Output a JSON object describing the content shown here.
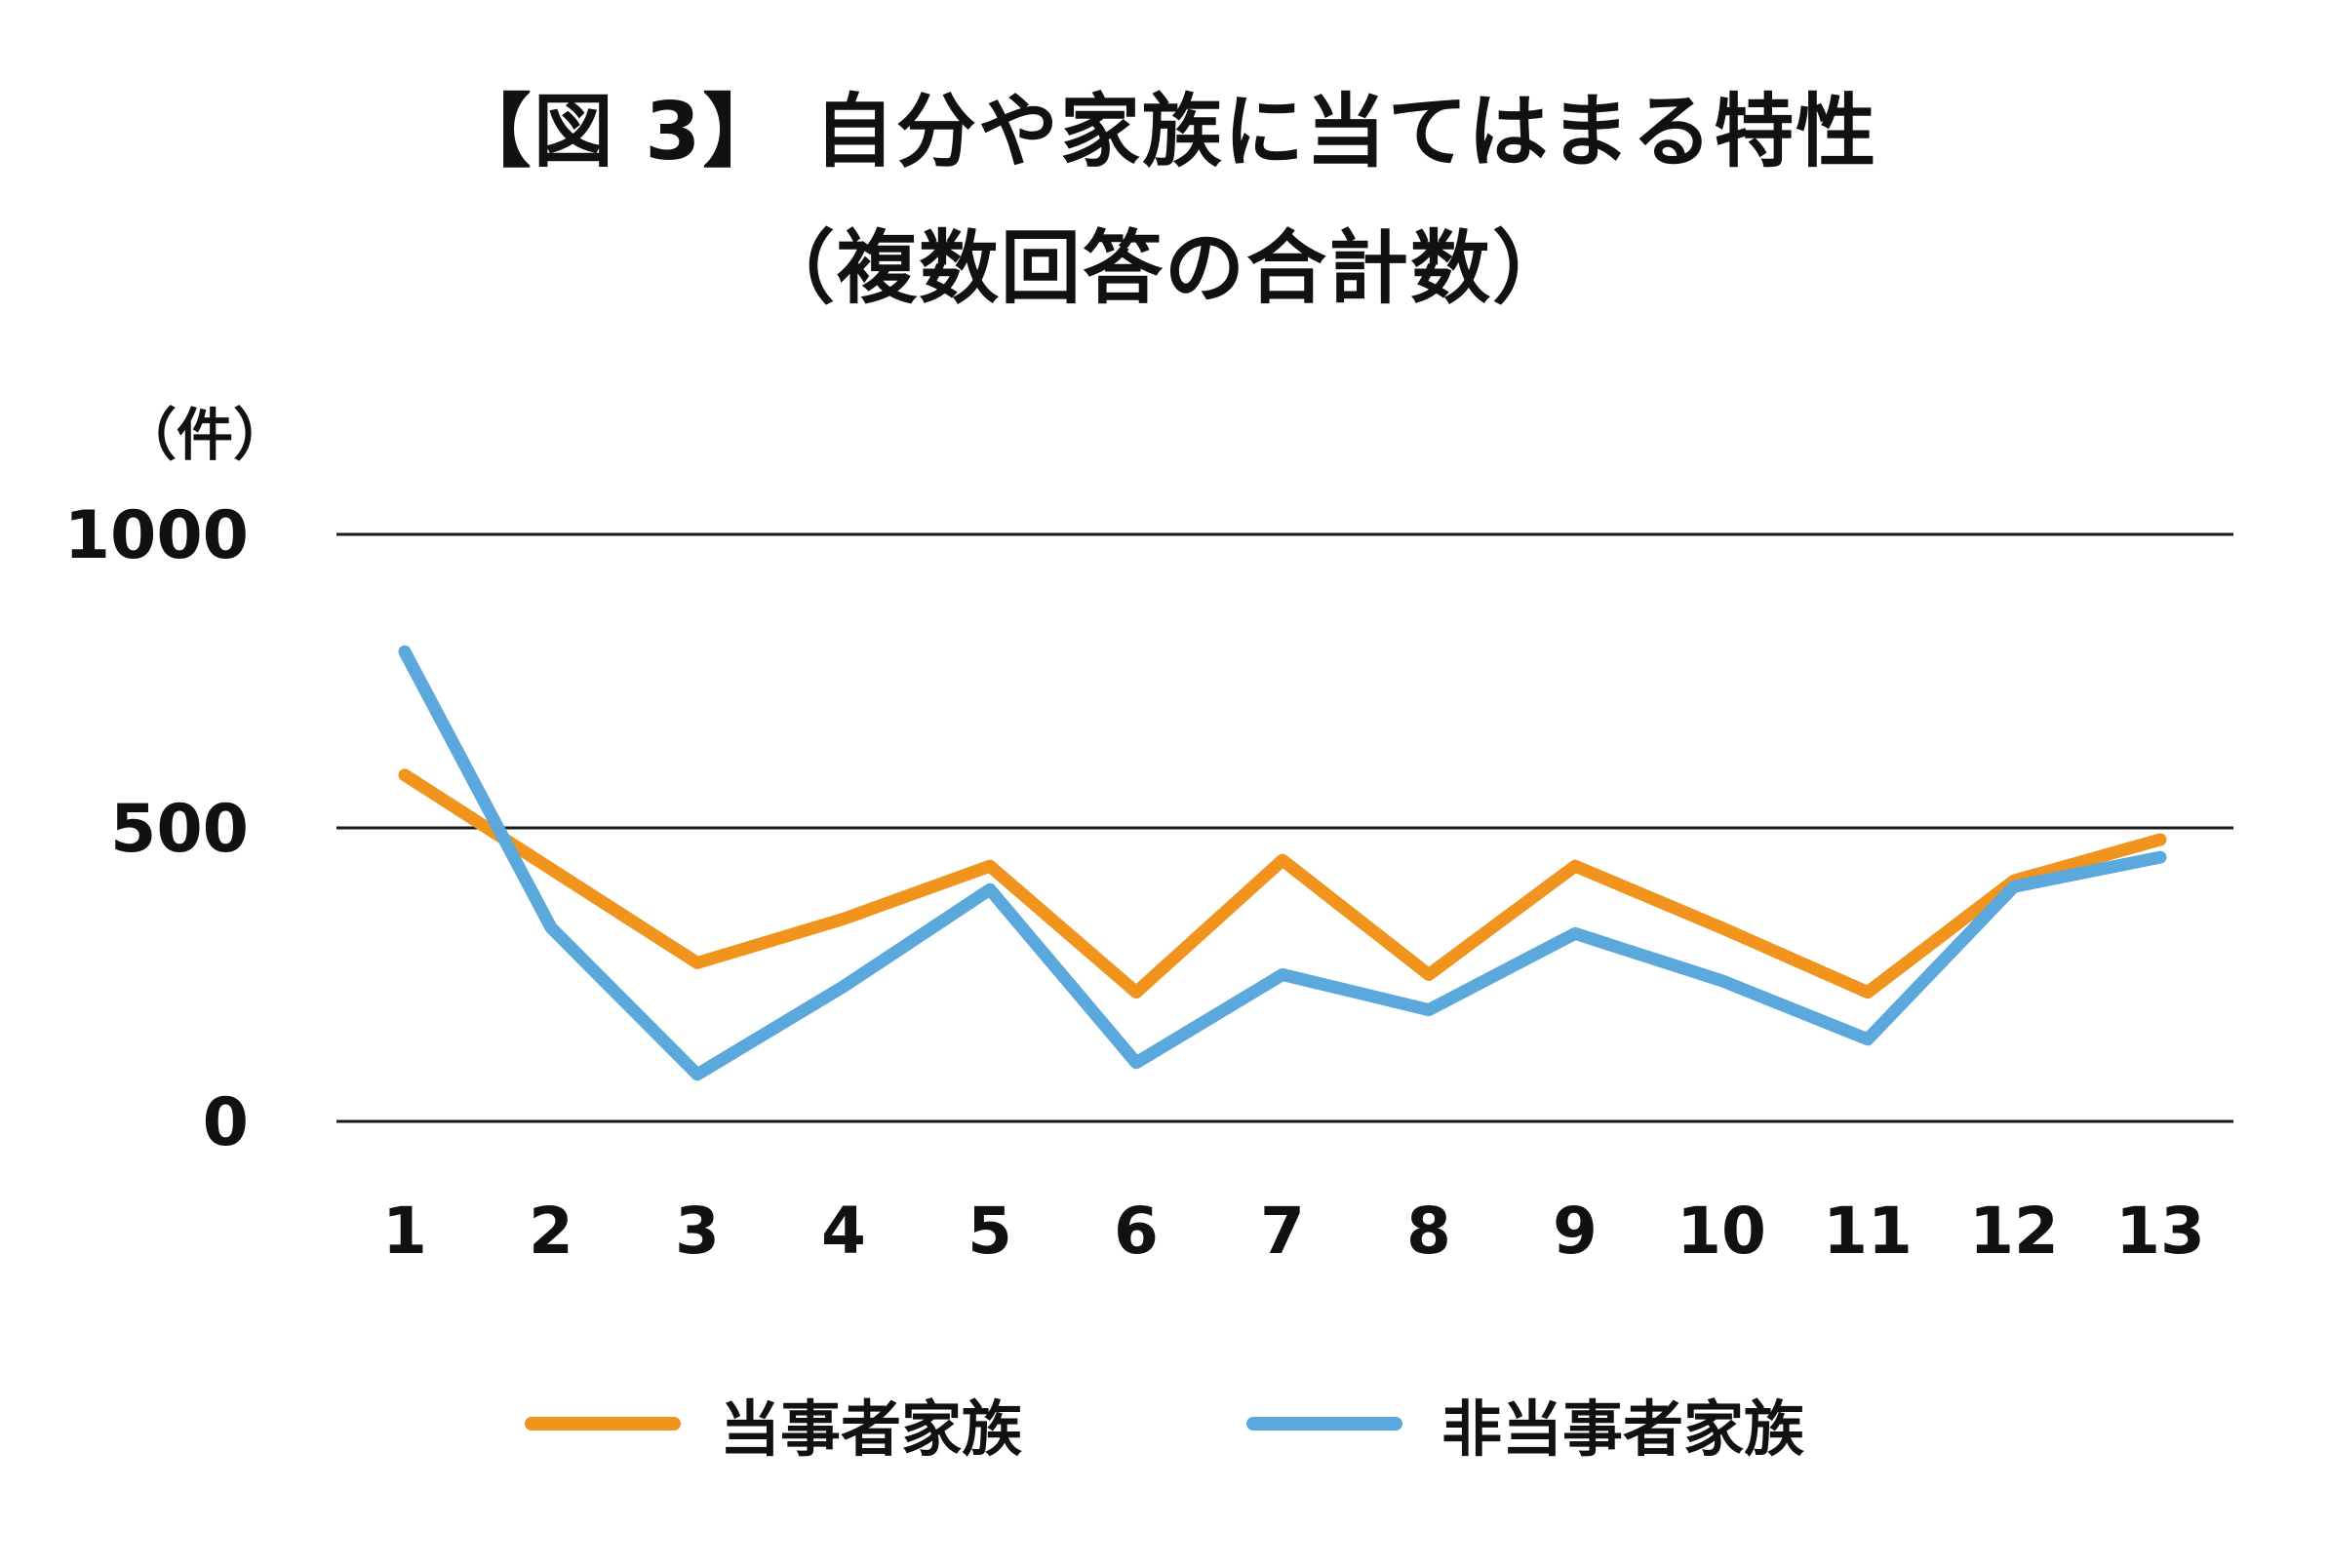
{
  "title": {
    "line1": "【図 3】 自分や家族に当てはまる特性",
    "line2": "（複数回答の合計数）"
  },
  "chart_data": {
    "type": "line",
    "x": [
      "1",
      "2",
      "3",
      "4",
      "5",
      "6",
      "7",
      "8",
      "9",
      "10",
      "11",
      "12",
      "13"
    ],
    "series": [
      {
        "name": "当事者家族",
        "color": "#F0941E",
        "values": [
          590,
          430,
          270,
          345,
          435,
          220,
          445,
          250,
          435,
          330,
          220,
          410,
          480
        ]
      },
      {
        "name": "非当事者家族",
        "color": "#5BA8DC",
        "values": [
          800,
          330,
          80,
          230,
          395,
          100,
          250,
          190,
          320,
          240,
          140,
          400,
          450
        ]
      }
    ],
    "ylabel": "（件）",
    "yticks": [
      0,
      500,
      1000
    ],
    "ylim": [
      0,
      1100
    ],
    "grid": true,
    "legend_position": "bottom",
    "text_color": "#111111",
    "gridline_color": "#1a1a1a"
  }
}
